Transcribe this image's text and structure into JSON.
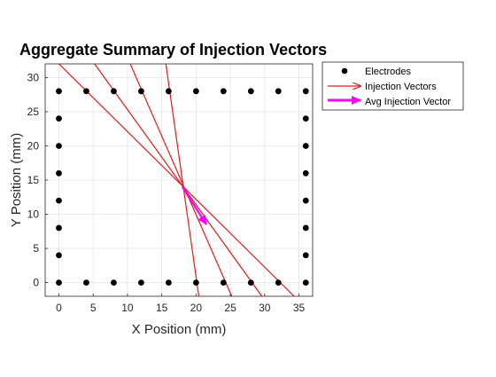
{
  "chart_data": {
    "type": "scatter",
    "title": "Aggregate Summary of Injection Vectors",
    "xlabel": "X Position (mm)",
    "ylabel": "Y Position (mm)",
    "xlim": [
      -2,
      37
    ],
    "ylim": [
      -2,
      32
    ],
    "xticks": [
      0,
      5,
      10,
      15,
      20,
      25,
      30,
      35
    ],
    "yticks": [
      0,
      5,
      10,
      15,
      20,
      25,
      30
    ],
    "grid": true,
    "legend_position": "outside top-right",
    "legend": [
      "Electrodes",
      "Injection Vectors",
      "Avg Injection Vector"
    ],
    "colors": {
      "electrodes": "#000000",
      "vectors": "#e41a1c",
      "avg": "#ff00ff",
      "grid": "#e6e6e6",
      "axis": "#262626"
    },
    "series": [
      {
        "name": "Electrodes",
        "points": [
          [
            0,
            0
          ],
          [
            4,
            0
          ],
          [
            8,
            0
          ],
          [
            12,
            0
          ],
          [
            16,
            0
          ],
          [
            20,
            0
          ],
          [
            24,
            0
          ],
          [
            28,
            0
          ],
          [
            32,
            0
          ],
          [
            36,
            0
          ],
          [
            0,
            28
          ],
          [
            4,
            28
          ],
          [
            8,
            28
          ],
          [
            12,
            28
          ],
          [
            16,
            28
          ],
          [
            20,
            28
          ],
          [
            24,
            28
          ],
          [
            28,
            28
          ],
          [
            32,
            28
          ],
          [
            36,
            28
          ],
          [
            0,
            4
          ],
          [
            0,
            8
          ],
          [
            0,
            12
          ],
          [
            0,
            16
          ],
          [
            0,
            20
          ],
          [
            0,
            24
          ],
          [
            36,
            4
          ],
          [
            36,
            8
          ],
          [
            36,
            12
          ],
          [
            36,
            16
          ],
          [
            36,
            20
          ],
          [
            36,
            24
          ]
        ]
      },
      {
        "name": "Injection Vectors",
        "segments": [
          [
            [
              0,
              32
            ],
            [
              34.3,
              -2
            ]
          ],
          [
            [
              5.2,
              32
            ],
            [
              29.6,
              -2
            ]
          ],
          [
            [
              10.4,
              32
            ],
            [
              25.2,
              -2
            ]
          ],
          [
            [
              15.6,
              32
            ],
            [
              20.4,
              -2
            ]
          ]
        ],
        "arrow_sample": [
          [
            36.5,
            31
          ],
          [
            44,
            31
          ]
        ]
      },
      {
        "name": "Avg Injection Vector",
        "segments": [
          [
            [
              18,
              14
            ],
            [
              21.5,
              8.5
            ]
          ]
        ]
      }
    ]
  }
}
